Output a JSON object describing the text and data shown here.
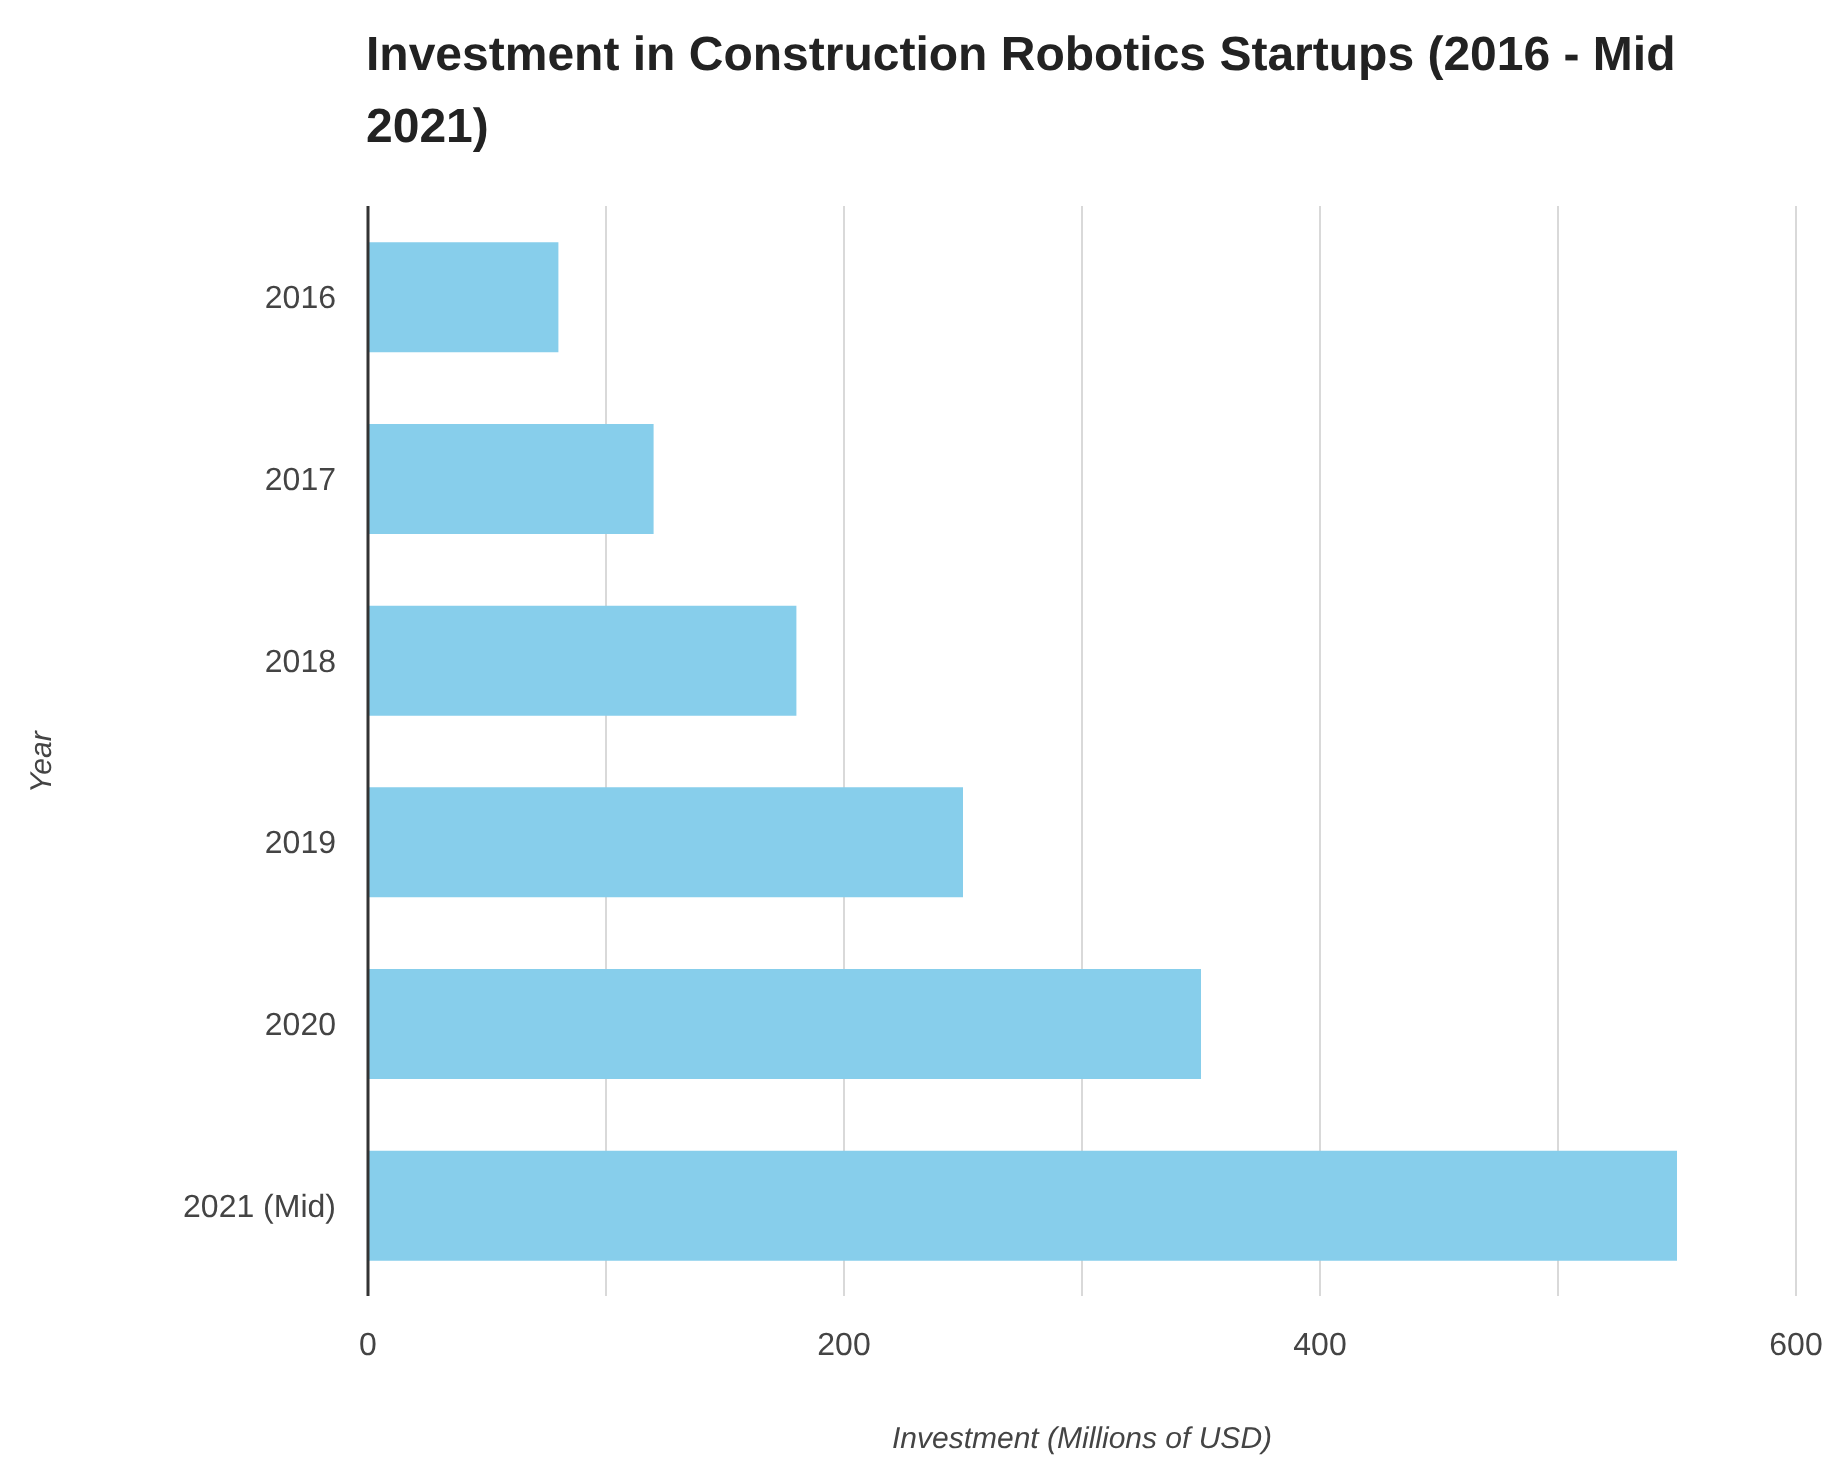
{
  "chart_data": {
    "type": "bar",
    "orientation": "horizontal",
    "title": "Investment in Construction Robotics Startups (2016 - Mid 2021)",
    "xlabel": "Investment (Millions of USD)",
    "ylabel": "Year",
    "categories": [
      "2016",
      "2017",
      "2018",
      "2019",
      "2020",
      "2021 (Mid)"
    ],
    "values": [
      80,
      120,
      180,
      250,
      350,
      550
    ],
    "color": "#87ceeb",
    "xlim": [
      0,
      600
    ],
    "xticks": [
      0,
      {
        "value": 100,
        "label": null
      },
      200,
      {
        "value": 300,
        "label": null
      },
      400,
      {
        "value": 500,
        "label": null
      },
      600
    ],
    "grid": "x"
  }
}
